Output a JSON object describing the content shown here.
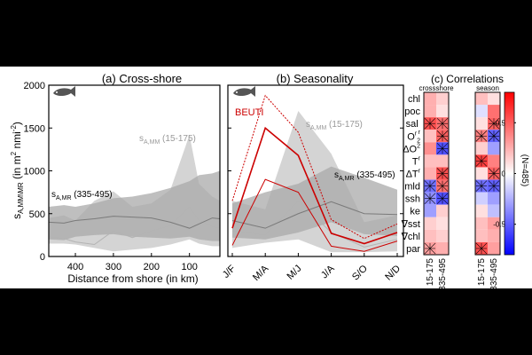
{
  "colors": {
    "background": "#000000",
    "figure": "#ffffff",
    "light_band": "#d4d4d4",
    "dark_band": "#a9a9a9",
    "mm_line": "#b3b3b3",
    "mr_line": "#7a7a7a",
    "beuti": "#cc0000",
    "fish": "#555555"
  },
  "chart_data": [
    {
      "id": "a",
      "type": "area",
      "title": "(a) Cross-shore",
      "xlabel": "Distance from shore (in km)",
      "ylabel": "s",
      "ylabel_sub": "A,MM\\MR",
      "ylabel_units_pre": " (in m",
      "ylabel_units_mid": " nmi",
      "ylabel_units_post": ")",
      "sup2": "2",
      "supm2": "-2",
      "xlim": [
        470,
        20
      ],
      "ylim": [
        0,
        2000
      ],
      "xticks": [
        400,
        300,
        200,
        100
      ],
      "xtick_labels": [
        "400",
        "300",
        "200",
        "100"
      ],
      "yticks": [
        0,
        500,
        1000,
        1500,
        2000
      ],
      "ytick_labels": [
        "0",
        "500",
        "1000",
        "1500",
        "2000"
      ],
      "x": [
        470,
        430,
        400,
        350,
        300,
        250,
        200,
        150,
        100,
        75,
        40,
        20
      ],
      "series": [
        {
          "name": "s_A,MM (15-175)",
          "label_main": "s",
          "label_sub": "A,MM",
          "label_range": " (15-175)",
          "lower": [
            150,
            150,
            140,
            100,
            60,
            80,
            100,
            140,
            200,
            150,
            120,
            120
          ],
          "median": [
            230,
            210,
            170,
            140,
            300,
            220,
            300,
            360,
            580,
            420,
            350,
            330
          ],
          "upper": [
            450,
            480,
            420,
            650,
            760,
            580,
            620,
            780,
            1420,
            850,
            700,
            650
          ]
        },
        {
          "name": "s_A,MR (335-495)",
          "label_main": "s",
          "label_sub": "A,MR",
          "label_range": " (335-495)",
          "lower": [
            200,
            190,
            230,
            250,
            260,
            230,
            220,
            210,
            230,
            200,
            180,
            180
          ],
          "median": [
            400,
            390,
            420,
            440,
            470,
            460,
            450,
            400,
            330,
            380,
            450,
            440
          ],
          "upper": [
            580,
            600,
            580,
            620,
            680,
            700,
            740,
            800,
            880,
            950,
            970,
            1000
          ]
        }
      ]
    },
    {
      "id": "b",
      "type": "line",
      "title": "(b) Seasonality",
      "categories": [
        "J/F",
        "M/A",
        "M/J",
        "J/A",
        "S/O",
        "N/D"
      ],
      "ylim": [
        0,
        2000
      ],
      "series": [
        {
          "name": "s_A,MM (15-175)",
          "label_main": "s",
          "label_sub": "A,MM",
          "label_range": " (15-175)",
          "lower": [
            100,
            160,
            200,
            50,
            50,
            60
          ],
          "median": [
            300,
            250,
            650,
            280,
            110,
            200
          ],
          "upper": [
            650,
            550,
            1700,
            1200,
            400,
            480
          ]
        },
        {
          "name": "s_A,MR (335-495)",
          "label_main": "s",
          "label_sub": "A,MR",
          "label_range": " (335-495)",
          "lower": [
            220,
            200,
            280,
            400,
            260,
            240
          ],
          "median": [
            420,
            330,
            500,
            640,
            500,
            490
          ],
          "upper": [
            620,
            750,
            850,
            1050,
            920,
            780
          ]
        },
        {
          "name": "BEUTI",
          "lower": [
            130,
            900,
            750,
            120,
            60,
            180
          ],
          "median": [
            330,
            1500,
            1180,
            270,
            150,
            280
          ],
          "upper": [
            650,
            1880,
            1450,
            430,
            210,
            380
          ]
        }
      ]
    },
    {
      "id": "c",
      "type": "heatmap",
      "title": "(c) Correlations",
      "panels": [
        "crossshore",
        "season"
      ],
      "column_labels": [
        "15-175",
        "335-495"
      ],
      "rows": [
        "chl",
        "poc",
        "sal",
        "O₂",
        "ΔO₂",
        "T",
        "ΔT",
        "mld",
        "ssh",
        "ke",
        "∇sst",
        "∇chl",
        "par"
      ],
      "row_label_main": [
        "chl",
        "poc",
        "sal",
        "O",
        "ΔO",
        "T",
        "ΔT",
        "mld",
        "ssh",
        "ke",
        "∇sst",
        "∇chl",
        "par"
      ],
      "row_label_sup": [
        "",
        "",
        "",
        "r",
        "2",
        "r",
        "r",
        "",
        "",
        "",
        "",
        "",
        ""
      ],
      "row_label_sub": [
        "",
        "",
        "r",
        "2",
        "",
        "",
        "",
        "",
        "",
        "",
        "",
        "",
        ""
      ],
      "values": {
        "crossshore": [
          [
            0.25,
            0.15
          ],
          [
            0.25,
            0.1
          ],
          [
            0.55,
            0.45
          ],
          [
            0.2,
            0.5
          ],
          [
            0.35,
            -0.55
          ],
          [
            0.2,
            0.2
          ],
          [
            0.25,
            0.55
          ],
          [
            -0.45,
            0.45
          ],
          [
            -0.35,
            -0.55
          ],
          [
            -0.3,
            0.15
          ],
          [
            0.15,
            0.1
          ],
          [
            0.2,
            0.15
          ],
          [
            0.3,
            0.25
          ]
        ],
        "season": [
          [
            0.2,
            0.1
          ],
          [
            -0.1,
            0.45
          ],
          [
            0.1,
            0.5
          ],
          [
            0.4,
            -0.5
          ],
          [
            0.15,
            -0.3
          ],
          [
            0.6,
            0.4
          ],
          [
            0.1,
            0.5
          ],
          [
            -0.45,
            -0.5
          ],
          [
            -0.15,
            -0.3
          ],
          [
            0.1,
            -0.2
          ],
          [
            0.2,
            0.3
          ],
          [
            0.2,
            0.25
          ],
          [
            0.55,
            0.3
          ]
        ]
      },
      "significant": {
        "crossshore": [
          [
            false,
            false
          ],
          [
            false,
            false
          ],
          [
            true,
            true
          ],
          [
            false,
            true
          ],
          [
            false,
            true
          ],
          [
            false,
            false
          ],
          [
            false,
            true
          ],
          [
            true,
            true
          ],
          [
            true,
            true
          ],
          [
            false,
            false
          ],
          [
            false,
            false
          ],
          [
            false,
            false
          ],
          [
            true,
            false
          ]
        ],
        "season": [
          [
            false,
            false
          ],
          [
            false,
            false
          ],
          [
            false,
            true
          ],
          [
            true,
            true
          ],
          [
            false,
            false
          ],
          [
            true,
            false
          ],
          [
            false,
            true
          ],
          [
            true,
            true
          ],
          [
            false,
            false
          ],
          [
            false,
            false
          ],
          [
            false,
            false
          ],
          [
            false,
            false
          ],
          [
            true,
            false
          ]
        ]
      },
      "colorbar": {
        "ticks": [
          0.5,
          0,
          -0.5
        ],
        "tick_labels": [
          "0.5",
          "0",
          "-0.5"
        ],
        "range": [
          -0.8,
          0.8
        ],
        "label": "(N=485)"
      }
    }
  ]
}
